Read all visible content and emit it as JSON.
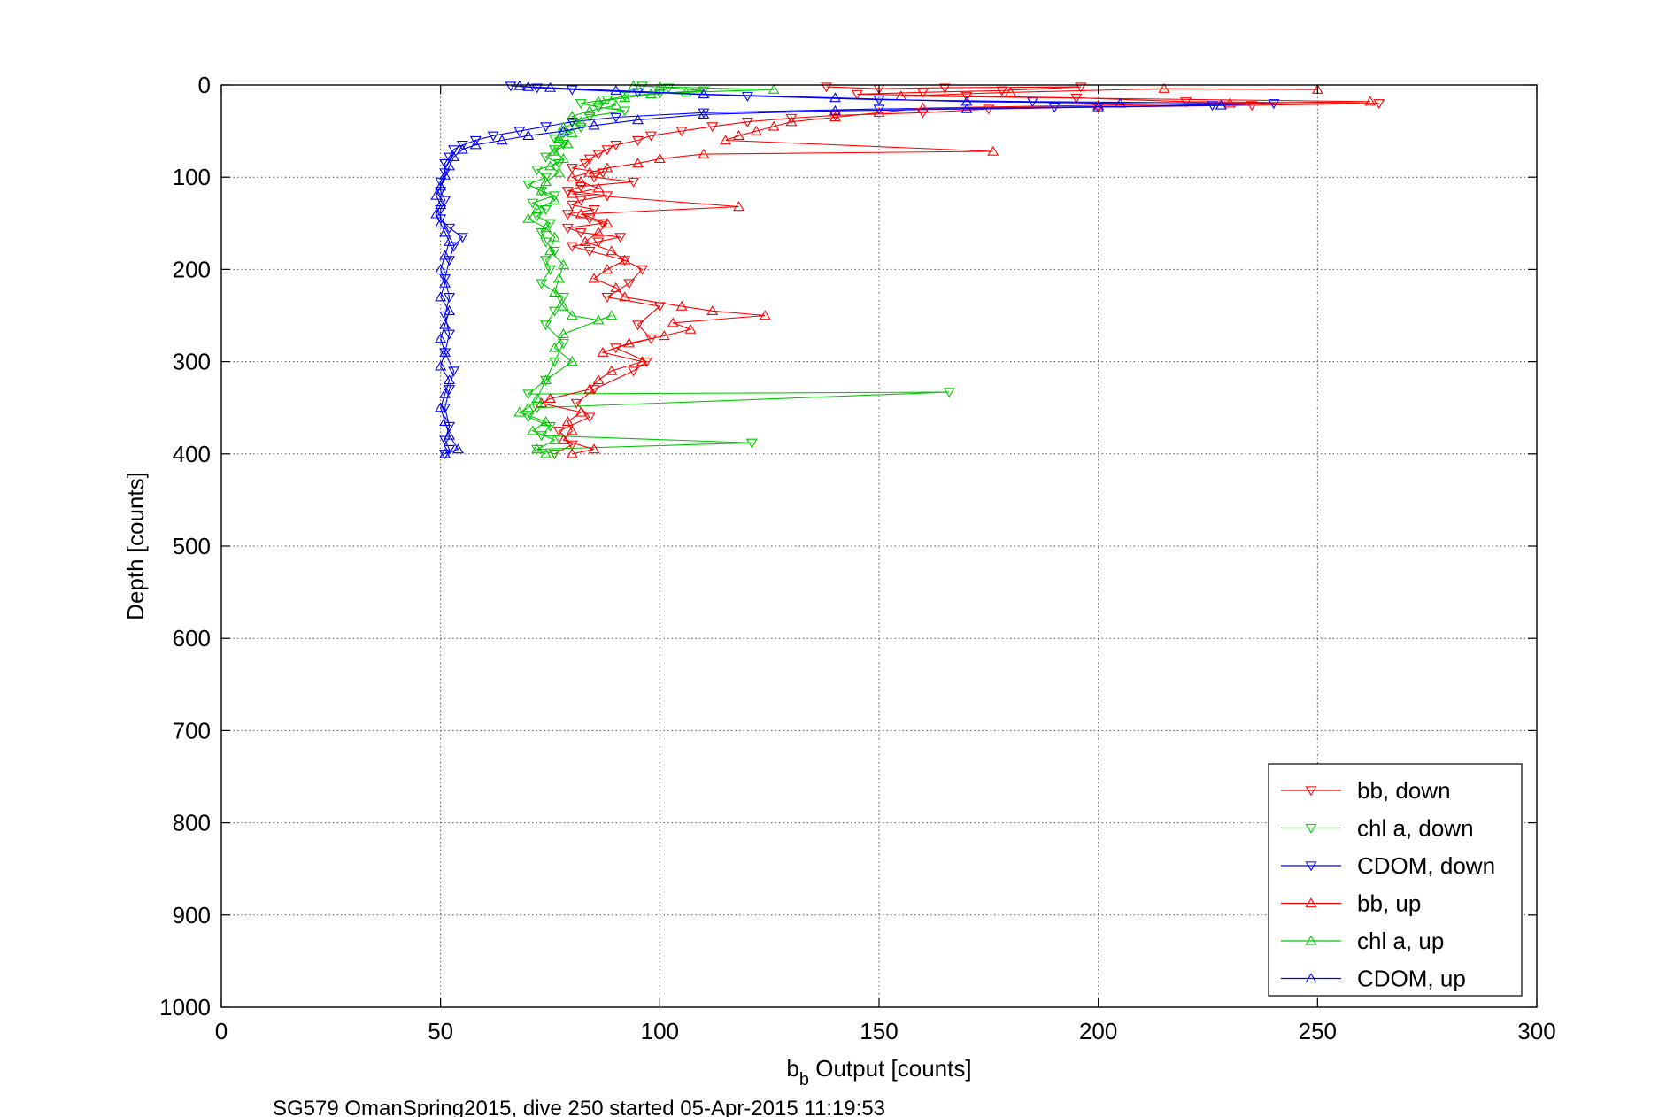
{
  "chart_data": {
    "type": "scatter",
    "title": "",
    "xlabel_main": "b",
    "xlabel_sub": "b",
    "xlabel_rest": " Output [counts]",
    "ylabel": "Depth [counts]",
    "caption": "SG579 OmanSpring2015, dive 250 started 05-Apr-2015 11:19:53",
    "xlim": [
      0,
      300
    ],
    "ylim": [
      0,
      1000
    ],
    "y_reversed": true,
    "grid": true,
    "legend_position": "bottom-right",
    "xticks": [
      "0",
      "50",
      "100",
      "150",
      "200",
      "250",
      "300"
    ],
    "yticks": [
      "0",
      "100",
      "200",
      "300",
      "400",
      "500",
      "600",
      "700",
      "800",
      "900",
      "1000"
    ],
    "series": [
      {
        "name": "bb, down",
        "color": "#ff0000",
        "marker": "triangle-down",
        "line": true,
        "points": [
          [
            138,
            2
          ],
          [
            150,
            4
          ],
          [
            165,
            3
          ],
          [
            196,
            2
          ],
          [
            178,
            6
          ],
          [
            160,
            8
          ],
          [
            145,
            10
          ],
          [
            170,
            12
          ],
          [
            195,
            14
          ],
          [
            220,
            18
          ],
          [
            264,
            20
          ],
          [
            235,
            22
          ],
          [
            200,
            24
          ],
          [
            175,
            26
          ],
          [
            160,
            30
          ],
          [
            140,
            33
          ],
          [
            130,
            36
          ],
          [
            120,
            40
          ],
          [
            112,
            45
          ],
          [
            105,
            50
          ],
          [
            98,
            55
          ],
          [
            95,
            60
          ],
          [
            90,
            65
          ],
          [
            88,
            70
          ],
          [
            86,
            75
          ],
          [
            84,
            80
          ],
          [
            83,
            85
          ],
          [
            80,
            90
          ],
          [
            87,
            95
          ],
          [
            85,
            100
          ],
          [
            94,
            105
          ],
          [
            82,
            110
          ],
          [
            79,
            115
          ],
          [
            88,
            120
          ],
          [
            82,
            125
          ],
          [
            80,
            130
          ],
          [
            85,
            135
          ],
          [
            79,
            140
          ],
          [
            84,
            145
          ],
          [
            87,
            150
          ],
          [
            79,
            155
          ],
          [
            82,
            160
          ],
          [
            91,
            165
          ],
          [
            86,
            170
          ],
          [
            80,
            175
          ],
          [
            84,
            180
          ],
          [
            92,
            190
          ],
          [
            96,
            200
          ],
          [
            93,
            215
          ],
          [
            88,
            230
          ],
          [
            100,
            240
          ],
          [
            95,
            260
          ],
          [
            98,
            275
          ],
          [
            90,
            285
          ],
          [
            97,
            300
          ],
          [
            94,
            310
          ],
          [
            85,
            330
          ],
          [
            81,
            345
          ],
          [
            84,
            360
          ],
          [
            77,
            375
          ],
          [
            80,
            390
          ],
          [
            76,
            400
          ]
        ]
      },
      {
        "name": "chl a, down",
        "color": "#00c800",
        "marker": "triangle-down",
        "line": true,
        "points": [
          [
            96,
            1
          ],
          [
            102,
            3
          ],
          [
            110,
            6
          ],
          [
            100,
            9
          ],
          [
            92,
            12
          ],
          [
            88,
            16
          ],
          [
            82,
            20
          ],
          [
            86,
            24
          ],
          [
            92,
            28
          ],
          [
            84,
            34
          ],
          [
            80,
            40
          ],
          [
            82,
            46
          ],
          [
            78,
            52
          ],
          [
            76,
            58
          ],
          [
            78,
            64
          ],
          [
            76,
            70
          ],
          [
            74,
            78
          ],
          [
            77,
            85
          ],
          [
            72,
            92
          ],
          [
            74,
            100
          ],
          [
            70,
            108
          ],
          [
            73,
            115
          ],
          [
            76,
            120
          ],
          [
            71,
            128
          ],
          [
            74,
            135
          ],
          [
            72,
            142
          ],
          [
            75,
            150
          ],
          [
            73,
            160
          ],
          [
            74,
            170
          ],
          [
            76,
            180
          ],
          [
            74,
            190
          ],
          [
            75,
            200
          ],
          [
            73,
            215
          ],
          [
            78,
            230
          ],
          [
            76,
            245
          ],
          [
            74,
            260
          ],
          [
            78,
            280
          ],
          [
            76,
            300
          ],
          [
            74,
            320
          ],
          [
            70,
            335
          ],
          [
            166,
            333
          ],
          [
            72,
            350
          ],
          [
            70,
            360
          ],
          [
            75,
            370
          ],
          [
            73,
            380
          ],
          [
            121,
            388
          ],
          [
            72,
            395
          ],
          [
            76,
            400
          ]
        ]
      },
      {
        "name": "CDOM, down",
        "color": "#0000ff",
        "marker": "triangle-down",
        "line": true,
        "points": [
          [
            66,
            1
          ],
          [
            72,
            3
          ],
          [
            80,
            5
          ],
          [
            95,
            8
          ],
          [
            120,
            12
          ],
          [
            150,
            16
          ],
          [
            185,
            18
          ],
          [
            240,
            20
          ],
          [
            226,
            22
          ],
          [
            190,
            24
          ],
          [
            150,
            26
          ],
          [
            110,
            30
          ],
          [
            90,
            35
          ],
          [
            80,
            40
          ],
          [
            74,
            45
          ],
          [
            68,
            50
          ],
          [
            62,
            55
          ],
          [
            58,
            60
          ],
          [
            55,
            65
          ],
          [
            53,
            70
          ],
          [
            52,
            78
          ],
          [
            51,
            85
          ],
          [
            51,
            95
          ],
          [
            50,
            105
          ],
          [
            50,
            115
          ],
          [
            51,
            125
          ],
          [
            50,
            135
          ],
          [
            50,
            145
          ],
          [
            52,
            155
          ],
          [
            55,
            165
          ],
          [
            53,
            175
          ],
          [
            52,
            190
          ],
          [
            51,
            210
          ],
          [
            52,
            230
          ],
          [
            51,
            250
          ],
          [
            52,
            270
          ],
          [
            51,
            290
          ],
          [
            53,
            310
          ],
          [
            52,
            330
          ],
          [
            51,
            350
          ],
          [
            52,
            370
          ],
          [
            51,
            385
          ],
          [
            52,
            395
          ],
          [
            51,
            400
          ]
        ]
      },
      {
        "name": "bb, up",
        "color": "#ff0000",
        "marker": "triangle-up",
        "line": true,
        "points": [
          [
            250,
            5
          ],
          [
            215,
            4
          ],
          [
            180,
            8
          ],
          [
            155,
            12
          ],
          [
            262,
            18
          ],
          [
            230,
            20
          ],
          [
            200,
            22
          ],
          [
            160,
            25
          ],
          [
            150,
            30
          ],
          [
            140,
            35
          ],
          [
            130,
            40
          ],
          [
            126,
            45
          ],
          [
            122,
            50
          ],
          [
            118,
            55
          ],
          [
            115,
            60
          ],
          [
            176,
            72
          ],
          [
            110,
            75
          ],
          [
            100,
            80
          ],
          [
            95,
            85
          ],
          [
            88,
            90
          ],
          [
            84,
            95
          ],
          [
            80,
            100
          ],
          [
            82,
            105
          ],
          [
            86,
            112
          ],
          [
            80,
            118
          ],
          [
            118,
            132
          ],
          [
            82,
            140
          ],
          [
            88,
            150
          ],
          [
            86,
            160
          ],
          [
            83,
            170
          ],
          [
            89,
            180
          ],
          [
            92,
            190
          ],
          [
            88,
            200
          ],
          [
            85,
            210
          ],
          [
            90,
            220
          ],
          [
            92,
            230
          ],
          [
            105,
            240
          ],
          [
            112,
            245
          ],
          [
            124,
            250
          ],
          [
            103,
            258
          ],
          [
            107,
            265
          ],
          [
            101,
            272
          ],
          [
            93,
            280
          ],
          [
            87,
            290
          ],
          [
            96,
            300
          ],
          [
            89,
            310
          ],
          [
            86,
            320
          ],
          [
            84,
            330
          ],
          [
            75,
            340
          ],
          [
            73,
            345
          ],
          [
            82,
            355
          ],
          [
            79,
            365
          ],
          [
            80,
            375
          ],
          [
            78,
            385
          ],
          [
            85,
            395
          ],
          [
            80,
            400
          ]
        ]
      },
      {
        "name": "chl a, up",
        "color": "#00c800",
        "marker": "triangle-up",
        "line": true,
        "points": [
          [
            94,
            1
          ],
          [
            100,
            2
          ],
          [
            126,
            5
          ],
          [
            106,
            8
          ],
          [
            98,
            10
          ],
          [
            92,
            14
          ],
          [
            86,
            18
          ],
          [
            90,
            22
          ],
          [
            84,
            28
          ],
          [
            80,
            34
          ],
          [
            82,
            40
          ],
          [
            78,
            46
          ],
          [
            80,
            52
          ],
          [
            77,
            58
          ],
          [
            79,
            64
          ],
          [
            76,
            72
          ],
          [
            78,
            80
          ],
          [
            75,
            88
          ],
          [
            77,
            95
          ],
          [
            74,
            105
          ],
          [
            73,
            115
          ],
          [
            76,
            125
          ],
          [
            72,
            135
          ],
          [
            70,
            145
          ],
          [
            74,
            155
          ],
          [
            76,
            165
          ],
          [
            75,
            180
          ],
          [
            78,
            195
          ],
          [
            77,
            210
          ],
          [
            76,
            225
          ],
          [
            78,
            240
          ],
          [
            80,
            250
          ],
          [
            86,
            255
          ],
          [
            89,
            250
          ],
          [
            78,
            270
          ],
          [
            76,
            285
          ],
          [
            80,
            300
          ],
          [
            74,
            320
          ],
          [
            72,
            340
          ],
          [
            70,
            350
          ],
          [
            68,
            355
          ],
          [
            74,
            365
          ],
          [
            71,
            375
          ],
          [
            76,
            385
          ],
          [
            72,
            395
          ],
          [
            74,
            400
          ]
        ]
      },
      {
        "name": "CDOM, up",
        "color": "#0000ff",
        "marker": "triangle-up",
        "line": true,
        "points": [
          [
            68,
            1
          ],
          [
            70,
            2
          ],
          [
            75,
            3
          ],
          [
            90,
            6
          ],
          [
            110,
            10
          ],
          [
            140,
            14
          ],
          [
            170,
            18
          ],
          [
            205,
            20
          ],
          [
            228,
            22
          ],
          [
            200,
            24
          ],
          [
            170,
            26
          ],
          [
            140,
            28
          ],
          [
            110,
            32
          ],
          [
            95,
            38
          ],
          [
            85,
            44
          ],
          [
            78,
            50
          ],
          [
            70,
            55
          ],
          [
            64,
            60
          ],
          [
            58,
            65
          ],
          [
            55,
            70
          ],
          [
            53,
            78
          ],
          [
            52,
            88
          ],
          [
            51,
            98
          ],
          [
            50,
            110
          ],
          [
            49,
            120
          ],
          [
            50,
            130
          ],
          [
            49,
            140
          ],
          [
            50,
            150
          ],
          [
            51,
            160
          ],
          [
            52,
            170
          ],
          [
            51,
            185
          ],
          [
            50,
            200
          ],
          [
            51,
            215
          ],
          [
            50,
            230
          ],
          [
            52,
            245
          ],
          [
            51,
            260
          ],
          [
            50,
            275
          ],
          [
            51,
            290
          ],
          [
            50,
            305
          ],
          [
            52,
            320
          ],
          [
            51,
            335
          ],
          [
            50,
            350
          ],
          [
            51,
            365
          ],
          [
            52,
            380
          ],
          [
            54,
            395
          ],
          [
            51,
            400
          ]
        ]
      }
    ]
  }
}
